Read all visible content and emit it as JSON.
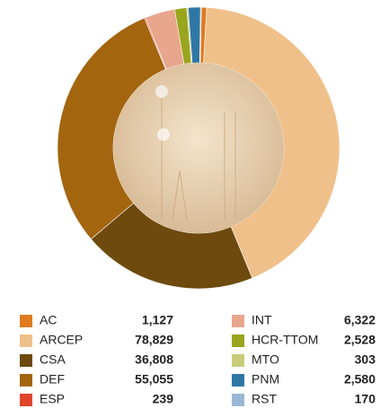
{
  "chart_data": {
    "type": "pie",
    "donut": true,
    "categories": [
      "AC",
      "ARCEP",
      "CSA",
      "DEF",
      "ESP",
      "INT",
      "HCR-TTOM",
      "MTO",
      "PNM",
      "RST"
    ],
    "values": [
      1127,
      78829,
      36808,
      55055,
      239,
      6322,
      2528,
      303,
      2580,
      170
    ],
    "value_labels": [
      "1,127",
      "78,829",
      "36,808",
      "55,055",
      "239",
      "6,322",
      "2,528",
      "303",
      "2,580",
      "170"
    ],
    "colors": [
      "#e07b20",
      "#f0c08a",
      "#6e4a0e",
      "#a4650f",
      "#e0452a",
      "#e8a68c",
      "#9aa51e",
      "#c9cc7a",
      "#2f78a6",
      "#9bb7d4"
    ]
  }
}
